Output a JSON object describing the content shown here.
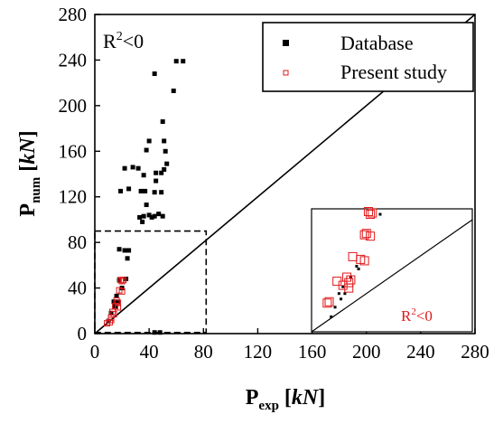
{
  "chart_data": {
    "type": "scatter",
    "xlabel": {
      "main": "P",
      "sub": "exp",
      "unit_open": " [",
      "unit": "kN",
      "unit_close": "]"
    },
    "ylabel": {
      "main": "P",
      "sub": "num",
      "unit_open": " [",
      "unit": "kN",
      "unit_close": "]"
    },
    "xlim": [
      0,
      280
    ],
    "ylim": [
      0,
      280
    ],
    "xticks": [
      0,
      40,
      80,
      120,
      160,
      200,
      240,
      280
    ],
    "yticks": [
      0,
      40,
      80,
      120,
      160,
      200,
      240,
      280
    ],
    "annotation": {
      "base": "R",
      "sup": "2",
      "rest": "<0"
    },
    "inset_annotation": {
      "base": "R",
      "sup": "2",
      "rest": "<0",
      "color": "#e0191b"
    },
    "reference_line": "y = x",
    "zoom_box": {
      "x": [
        0,
        82
      ],
      "y": [
        1,
        90
      ]
    },
    "legend_position": "top-right",
    "grid": false,
    "series": [
      {
        "name": "Database",
        "marker": "filled-square",
        "color": "#000000",
        "points": [
          [
            60,
            239
          ],
          [
            65,
            239
          ],
          [
            44,
            228
          ],
          [
            58,
            213
          ],
          [
            50,
            186
          ],
          [
            40,
            169
          ],
          [
            51,
            169
          ],
          [
            38,
            161
          ],
          [
            52,
            160
          ],
          [
            28,
            146
          ],
          [
            32,
            145
          ],
          [
            53,
            149
          ],
          [
            22,
            145
          ],
          [
            36,
            139
          ],
          [
            45,
            141
          ],
          [
            51,
            144
          ],
          [
            49,
            141
          ],
          [
            45,
            134
          ],
          [
            19,
            125
          ],
          [
            25,
            127
          ],
          [
            37,
            125
          ],
          [
            34,
            125
          ],
          [
            44,
            124
          ],
          [
            49,
            124
          ],
          [
            38,
            113
          ],
          [
            36,
            103
          ],
          [
            40,
            104
          ],
          [
            44,
            103
          ],
          [
            47,
            105
          ],
          [
            50,
            103
          ],
          [
            33,
            102
          ],
          [
            42,
            102
          ],
          [
            35,
            98
          ],
          [
            18,
            74
          ],
          [
            22,
            73
          ],
          [
            25,
            73
          ],
          [
            24,
            66
          ],
          [
            23,
            48
          ],
          [
            18,
            47
          ],
          [
            20,
            40
          ],
          [
            16,
            33
          ],
          [
            14,
            28
          ],
          [
            17,
            28
          ],
          [
            15,
            24
          ],
          [
            12,
            18
          ],
          [
            10,
            11
          ],
          [
            44,
            1
          ],
          [
            48,
            1
          ]
        ]
      },
      {
        "name": "Present study",
        "marker": "open-square",
        "color": "#e0191b",
        "points": [
          [
            19,
            47
          ],
          [
            21,
            47
          ],
          [
            20,
            46
          ],
          [
            18,
            38
          ],
          [
            20,
            37
          ],
          [
            16,
            29
          ],
          [
            17,
            27
          ],
          [
            15,
            24
          ],
          [
            17,
            23
          ],
          [
            13,
            19
          ],
          [
            14,
            17
          ],
          [
            12,
            14
          ],
          [
            12,
            12
          ],
          [
            11,
            10
          ],
          [
            9,
            9
          ]
        ]
      }
    ],
    "inset": {
      "xlim": [
        0,
        82
      ],
      "ylim": [
        0,
        90
      ],
      "reference_line": "y = x",
      "series": [
        {
          "name": "Database",
          "marker": "filled-square",
          "color": "#000000",
          "points": [
            [
              23,
              48
            ],
            [
              24,
              46
            ],
            [
              20,
              40
            ],
            [
              16,
              33
            ],
            [
              14,
              28
            ],
            [
              17,
              28
            ],
            [
              15,
              24
            ],
            [
              12,
              18
            ],
            [
              10,
              11
            ],
            [
              35,
              86
            ]
          ]
        },
        {
          "name": "Present study",
          "marker": "open-square",
          "color": "#e0191b",
          "points": [
            [
              29,
              88
            ],
            [
              31,
              87
            ],
            [
              30,
              86
            ],
            [
              28,
              72
            ],
            [
              30,
              70
            ],
            [
              27,
              71
            ],
            [
              21,
              55
            ],
            [
              25,
              53
            ],
            [
              27,
              52
            ],
            [
              18,
              40
            ],
            [
              20,
              38
            ],
            [
              13,
              37
            ],
            [
              19,
              36
            ],
            [
              19,
              32
            ],
            [
              16,
              34
            ],
            [
              9,
              22
            ],
            [
              8,
              21
            ]
          ]
        }
      ]
    }
  }
}
